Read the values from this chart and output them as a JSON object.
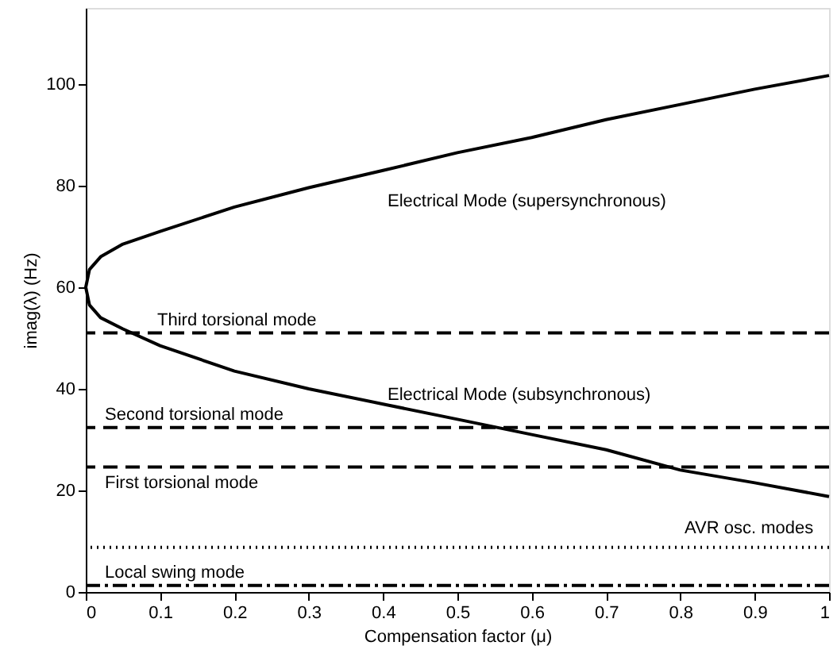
{
  "chart_data": {
    "type": "line",
    "xlabel": "Compensation factor (μ)",
    "ylabel": "imag(λ) (Hz)",
    "xlim": [
      0,
      1
    ],
    "ylim": [
      0,
      115
    ],
    "xticks": [
      0,
      0.1,
      0.2,
      0.3,
      0.4,
      0.5,
      0.6,
      0.7,
      0.8,
      0.9,
      1
    ],
    "yticks": [
      0,
      20,
      40,
      60,
      80,
      100
    ],
    "grid": false,
    "series": [
      {
        "color": "#000000",
        "line_style": "solid",
        "x": [
          1,
          0.9,
          0.8,
          0.7,
          0.6,
          0.5,
          0.4,
          0.3,
          0.2,
          0.1,
          0.05,
          0.02,
          0.005,
          0,
          0.005,
          0.02,
          0.05,
          0.1,
          0.2,
          0.3,
          0.4,
          0.5,
          0.6,
          0.7,
          0.8,
          0.9,
          1
        ],
        "values": [
          101.7,
          99,
          96,
          93,
          89.5,
          86.5,
          83,
          79.6,
          75.8,
          71,
          68.5,
          66,
          63.5,
          60,
          56.5,
          54,
          51.8,
          48.5,
          43.5,
          40,
          37,
          34,
          31,
          28,
          24,
          21.5,
          18.8
        ]
      }
    ],
    "ref_lines": [
      {
        "axis": "y",
        "value": 51,
        "line_style": "dashed",
        "color": "#000000",
        "label": "Third torsional mode"
      },
      {
        "axis": "y",
        "value": 32.4,
        "line_style": "dashed",
        "color": "#000000",
        "label": "Second torsional mode"
      },
      {
        "axis": "y",
        "value": 24.6,
        "line_style": "dashed",
        "color": "#000000",
        "label": "First torsional mode"
      },
      {
        "axis": "y",
        "value": 8.8,
        "line_style": "dotted",
        "color": "#000000"
      },
      {
        "axis": "y",
        "value": 1.3,
        "line_style": "dashdot",
        "color": "#000000",
        "label": "Local swing mode"
      }
    ],
    "annotations": [
      "Electrical Mode (supersynchronous)",
      "Electrical Mode (subsynchronous)",
      "AVR osc. modes"
    ]
  }
}
